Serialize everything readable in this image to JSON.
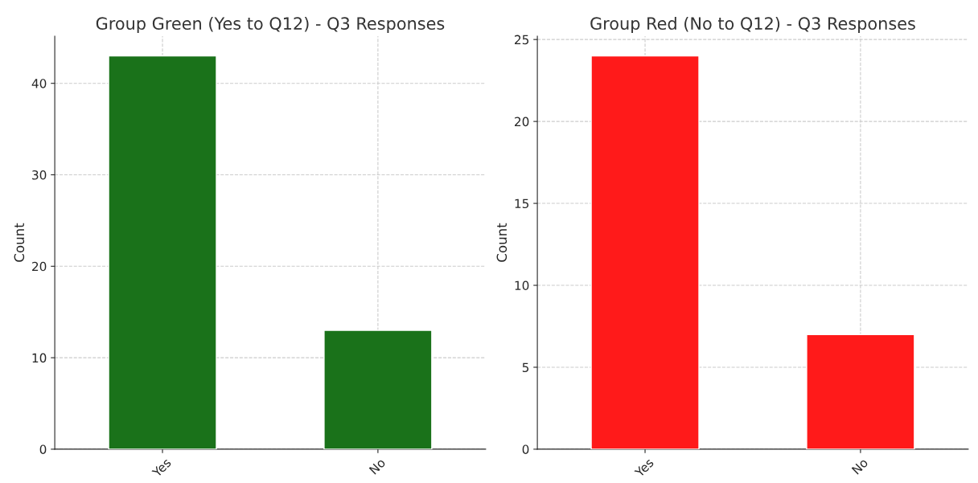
{
  "chart_data": [
    {
      "type": "bar",
      "title": "Group Green (Yes to Q12) - Q3 Responses",
      "ylabel": "Count",
      "categories": [
        "Yes",
        "No"
      ],
      "values": [
        43,
        13
      ],
      "color": "#1a721a",
      "ylim": [
        0,
        45.15
      ],
      "yticks": [
        0,
        10,
        20,
        30,
        40
      ],
      "grid": true,
      "legend": false
    },
    {
      "type": "bar",
      "title": "Group Red (No to Q12) - Q3 Responses",
      "ylabel": "Count",
      "categories": [
        "Yes",
        "No"
      ],
      "values": [
        24,
        7
      ],
      "color": "#ff1a1a",
      "ylim": [
        0,
        25.2
      ],
      "yticks": [
        0,
        5,
        10,
        15,
        20,
        25
      ],
      "grid": true,
      "legend": false
    }
  ]
}
